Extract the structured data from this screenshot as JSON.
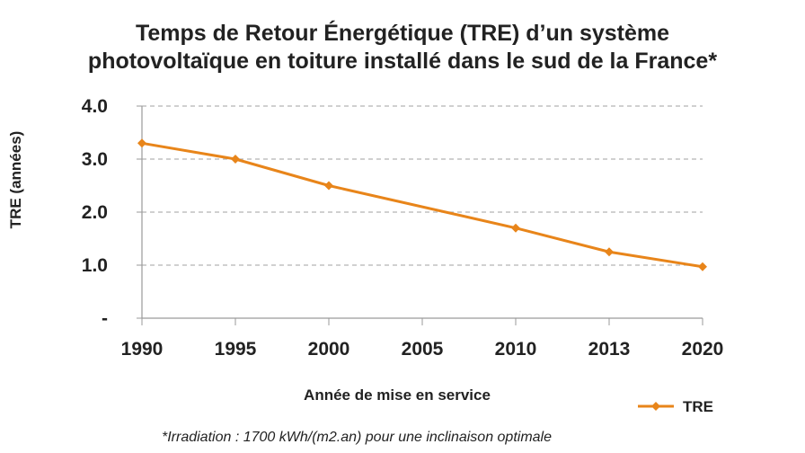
{
  "chart_data": {
    "type": "line",
    "title": "Temps de Retour Énergétique (TRE) d’un système",
    "title_line2": "photovoltaïque en toiture installé dans le sud de la France*",
    "xlabel": "Année de mise en service",
    "ylabel": "TRE (années)",
    "categories": [
      "1990",
      "1995",
      "2000",
      "2005",
      "2010",
      "2013",
      "2020"
    ],
    "series": [
      {
        "name": "TRE",
        "color": "#e8851a",
        "points": [
          {
            "x": "1990",
            "y": 3.3
          },
          {
            "x": "1995",
            "y": 3.0
          },
          {
            "x": "2000",
            "y": 2.5
          },
          {
            "x": "2010",
            "y": 1.7
          },
          {
            "x": "2013",
            "y": 1.25
          },
          {
            "x": "2020",
            "y": 0.97
          }
        ]
      }
    ],
    "ylim": [
      0,
      4
    ],
    "yticks": [
      {
        "value": 0,
        "label": "-"
      },
      {
        "value": 1,
        "label": "1.0"
      },
      {
        "value": 2,
        "label": "2.0"
      },
      {
        "value": 3,
        "label": "3.0"
      },
      {
        "value": 4,
        "label": "4.0"
      }
    ],
    "grid": "horizontal dashed",
    "legend_position": "bottom-right",
    "footnote": "*Irradiation : 1700 kWh/(m2.an) pour une inclinaison optimale"
  }
}
